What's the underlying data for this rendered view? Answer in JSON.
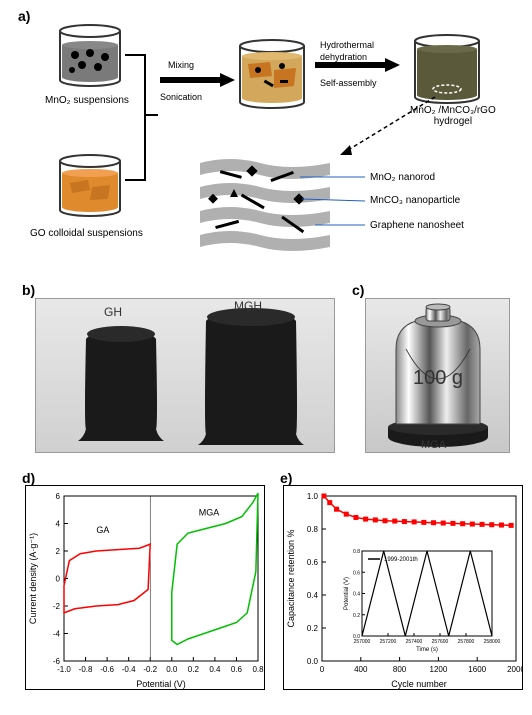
{
  "panel_a": {
    "label": "a)",
    "beaker1_caption": "MnO₂ suspensions",
    "beaker2_caption": "GO colloidal suspensions",
    "beaker4_caption": "MnO₂ /MnCO₃/rGO\nhydrogel",
    "arrow1_labels": [
      "Mixing",
      "Sonication"
    ],
    "arrow2_labels": [
      "Hydrothermal",
      "dehydration",
      "Self-assembly"
    ],
    "legend": [
      "MnO₂ nanorod",
      "MnCO₃ nanoparticle",
      "Graphene nanosheet"
    ],
    "colors": {
      "beaker_outline": "#333333",
      "mno2_liquid": "#7a7a7a",
      "go_liquid": "#e08a2e",
      "mixed_liquid": "#a06830",
      "hydrogel": "#5a5a3a",
      "graphene": "#b0b0b0",
      "nanoparticle": "#000000"
    }
  },
  "panel_b": {
    "label": "b)",
    "labels": [
      "GH",
      "MGH"
    ]
  },
  "panel_c": {
    "label": "c)",
    "weight_text": "100 g",
    "mga_label": "MGA"
  },
  "panel_d": {
    "label": "d)",
    "xlabel": "Potential (V)",
    "ylabel": "Current density (A·g⁻¹)",
    "xlim": [
      -1.0,
      0.8
    ],
    "ylim": [
      -6,
      6
    ],
    "xticks": [
      -1.0,
      -0.8,
      -0.6,
      -0.4,
      -0.2,
      0.0,
      0.2,
      0.4,
      0.6,
      0.8
    ],
    "yticks": [
      -6,
      -4,
      -2,
      0,
      2,
      4,
      6
    ],
    "series": {
      "GA": {
        "label": "GA",
        "color": "#ff0000",
        "pts_top": [
          [
            -1.0,
            -0.5
          ],
          [
            -0.95,
            1.3
          ],
          [
            -0.85,
            1.8
          ],
          [
            -0.7,
            2.0
          ],
          [
            -0.5,
            2.1
          ],
          [
            -0.3,
            2.2
          ],
          [
            -0.2,
            2.5
          ]
        ],
        "pts_bot": [
          [
            -0.2,
            2.5
          ],
          [
            -0.22,
            -0.8
          ],
          [
            -0.35,
            -1.6
          ],
          [
            -0.5,
            -1.9
          ],
          [
            -0.7,
            -2.0
          ],
          [
            -0.9,
            -2.2
          ],
          [
            -1.0,
            -2.5
          ],
          [
            -1.0,
            -0.5
          ]
        ]
      },
      "MGA": {
        "label": "MGA",
        "color": "#00c000",
        "pts_top": [
          [
            0.0,
            -1.0
          ],
          [
            0.05,
            2.5
          ],
          [
            0.15,
            3.3
          ],
          [
            0.3,
            3.6
          ],
          [
            0.5,
            4.0
          ],
          [
            0.65,
            4.5
          ],
          [
            0.75,
            5.5
          ],
          [
            0.8,
            6.2
          ]
        ],
        "pts_bot": [
          [
            0.8,
            6.2
          ],
          [
            0.78,
            0.5
          ],
          [
            0.7,
            -2.5
          ],
          [
            0.6,
            -3.2
          ],
          [
            0.45,
            -3.6
          ],
          [
            0.3,
            -4.0
          ],
          [
            0.15,
            -4.4
          ],
          [
            0.05,
            -4.8
          ],
          [
            0.0,
            -4.5
          ],
          [
            0.0,
            -1.0
          ]
        ]
      }
    },
    "label_fontsize": 9
  },
  "panel_e": {
    "label": "e)",
    "xlabel": "Cycle number",
    "ylabel": "Capacitance retention %",
    "xlim": [
      0,
      2000
    ],
    "ylim": [
      0.0,
      1.0
    ],
    "xticks": [
      0,
      400,
      800,
      1200,
      1600,
      2000
    ],
    "yticks": [
      0.0,
      0.2,
      0.4,
      0.6,
      0.8,
      1.0
    ],
    "series_color": "#ff0000",
    "data": [
      [
        20,
        1.0
      ],
      [
        80,
        0.96
      ],
      [
        150,
        0.92
      ],
      [
        250,
        0.89
      ],
      [
        350,
        0.87
      ],
      [
        450,
        0.86
      ],
      [
        550,
        0.855
      ],
      [
        650,
        0.85
      ],
      [
        750,
        0.848
      ],
      [
        850,
        0.845
      ],
      [
        950,
        0.843
      ],
      [
        1050,
        0.84
      ],
      [
        1150,
        0.838
      ],
      [
        1250,
        0.836
      ],
      [
        1350,
        0.834
      ],
      [
        1450,
        0.832
      ],
      [
        1550,
        0.83
      ],
      [
        1650,
        0.828
      ],
      [
        1750,
        0.826
      ],
      [
        1850,
        0.824
      ],
      [
        1950,
        0.822
      ]
    ],
    "inset": {
      "label": "1999-2001th",
      "xlabel": "Time (s)",
      "ylabel": "Potential (V)",
      "xlim": [
        257000,
        258000
      ],
      "ylim": [
        0.0,
        0.8
      ],
      "xticks": [
        257000,
        257200,
        257400,
        257600,
        257800,
        258000
      ],
      "data": [
        [
          257000,
          0.0
        ],
        [
          257167,
          0.8
        ],
        [
          257333,
          0.0
        ],
        [
          257500,
          0.8
        ],
        [
          257667,
          0.0
        ],
        [
          257833,
          0.8
        ],
        [
          258000,
          0.0
        ]
      ],
      "color": "#000000"
    },
    "label_fontsize": 9
  }
}
